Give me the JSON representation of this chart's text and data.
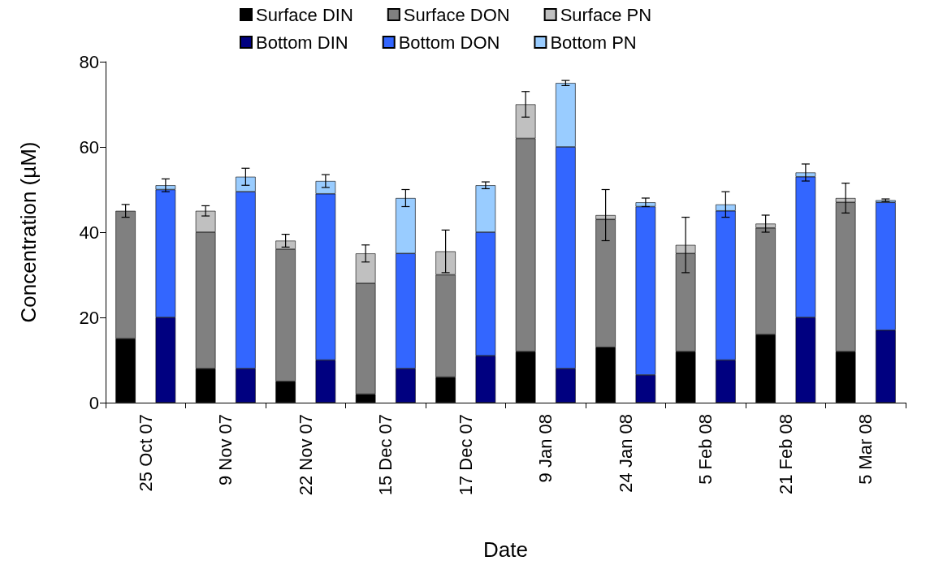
{
  "chart_data": {
    "type": "bar",
    "stacked": true,
    "xlabel": "Date",
    "ylabel": "Concentration (µM)",
    "ylim": [
      0,
      80
    ],
    "yticks": [
      0,
      20,
      40,
      60,
      80
    ],
    "grid": false,
    "legend": "top",
    "categories": [
      "25 Oct 07",
      null,
      "9 Nov 07",
      null,
      "22 Nov 07",
      null,
      "15 Dec 07",
      null,
      "17 Dec 07",
      null,
      "9 Jan 08",
      null,
      "24 Jan 08",
      null,
      "5 Feb 08",
      null,
      "21 Feb 08",
      null,
      "5 Mar 08",
      null
    ],
    "series": [
      {
        "name": "Surface DIN",
        "color": "#000000",
        "values": [
          15,
          null,
          8,
          null,
          5,
          null,
          2,
          null,
          6,
          null,
          12,
          null,
          13,
          null,
          12,
          null,
          16,
          null,
          12,
          null
        ]
      },
      {
        "name": "Surface DON",
        "color": "#808080",
        "values": [
          30,
          null,
          32,
          null,
          31,
          null,
          26,
          null,
          24,
          null,
          50,
          null,
          30,
          null,
          23,
          null,
          25,
          null,
          35,
          null
        ],
        "errors": [
          1.5,
          null,
          null,
          null,
          null,
          null,
          null,
          null,
          null,
          null,
          null,
          null,
          null,
          null,
          null,
          null,
          null,
          null,
          null,
          null
        ]
      },
      {
        "name": "Surface PN",
        "color": "#c0c0c0",
        "values": [
          null,
          null,
          5,
          null,
          2,
          null,
          7,
          null,
          5.5,
          null,
          8,
          null,
          1,
          null,
          2,
          null,
          1,
          null,
          1,
          null
        ],
        "errors": [
          null,
          null,
          1.2,
          null,
          1.5,
          null,
          2,
          null,
          5,
          null,
          3,
          null,
          6,
          null,
          6.5,
          null,
          2,
          null,
          3.5,
          null
        ]
      },
      {
        "name": "Bottom DIN",
        "color": "#000080",
        "values": [
          null,
          20,
          null,
          8,
          null,
          10,
          null,
          8,
          null,
          11,
          null,
          8,
          null,
          6.5,
          null,
          10,
          null,
          20,
          null,
          17
        ]
      },
      {
        "name": "Bottom DON",
        "color": "#3366ff",
        "values": [
          null,
          30,
          null,
          41.5,
          null,
          39,
          null,
          27,
          null,
          29,
          null,
          52,
          null,
          39.5,
          null,
          35,
          null,
          33,
          null,
          30
        ]
      },
      {
        "name": "Bottom PN",
        "color": "#99ccff",
        "values": [
          null,
          1,
          null,
          3.5,
          null,
          3,
          null,
          13,
          null,
          11,
          null,
          15,
          null,
          1,
          null,
          1.5,
          null,
          1,
          null,
          0.5
        ],
        "errors": [
          null,
          1.5,
          null,
          2,
          null,
          1.5,
          null,
          2,
          null,
          0.8,
          null,
          0.6,
          null,
          1,
          null,
          3,
          null,
          2,
          null,
          0.3
        ]
      }
    ]
  }
}
